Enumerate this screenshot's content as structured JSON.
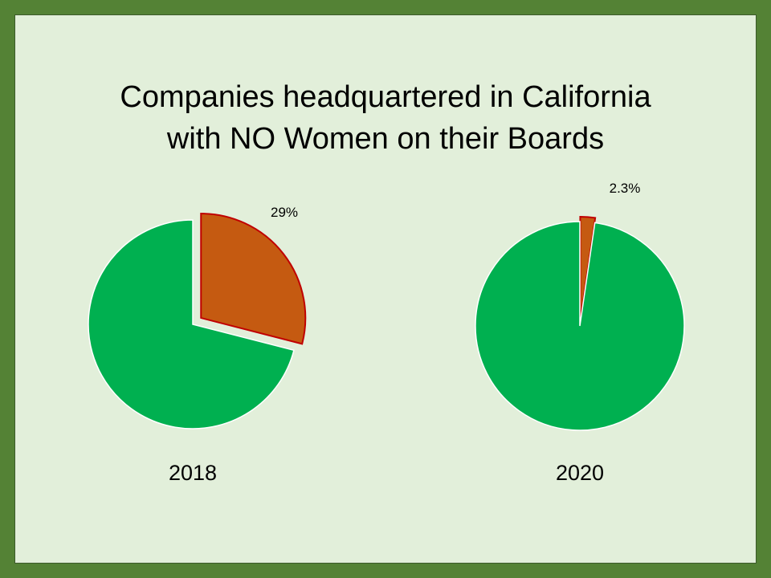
{
  "title_line1": "Companies headquartered in California",
  "title_line2": "with NO Women on their Boards",
  "colors": {
    "frame": "#548235",
    "background": "#e2efda",
    "no_women": "#c55a11",
    "no_women_outline": "#c00000",
    "other": "#00b050"
  },
  "chart_data": [
    {
      "type": "pie",
      "title": "",
      "xlabel": "2018",
      "slices": [
        {
          "label": "29%",
          "value": 29,
          "color": "#c55a11",
          "exploded": true
        },
        {
          "label": "",
          "value": 71,
          "color": "#00b050"
        }
      ]
    },
    {
      "type": "pie",
      "title": "",
      "xlabel": "2020",
      "slices": [
        {
          "label": "2.3%",
          "value": 2.3,
          "color": "#c55a11",
          "exploded": true
        },
        {
          "label": "",
          "value": 97.7,
          "color": "#00b050"
        }
      ]
    }
  ]
}
